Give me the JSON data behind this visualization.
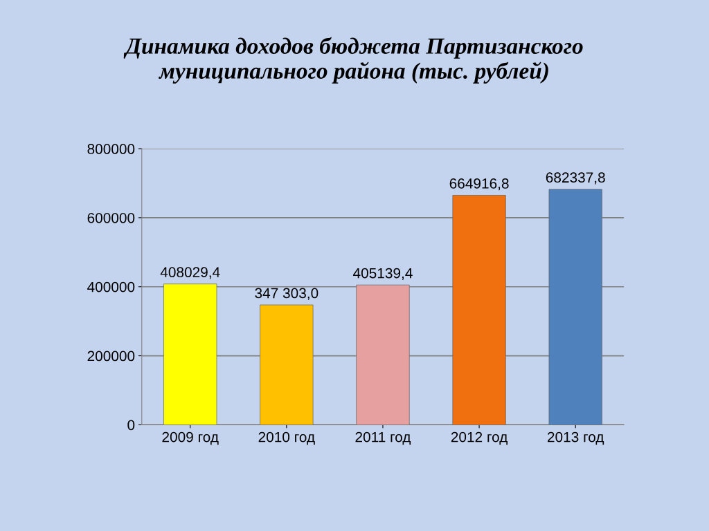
{
  "chart_data": {
    "type": "bar",
    "title": "Динамика доходов бюджета Партизанского\nмуниципального района (тыс. рублей)",
    "categories": [
      "2009 год",
      "2010 год",
      "2011 год",
      "2012 год",
      "2013 год"
    ],
    "values": [
      408029.4,
      347303.0,
      405139.4,
      664916.8,
      682337.8
    ],
    "colors": [
      "#ffff00",
      "#ffc000",
      "#e6a0a0",
      "#f07010",
      "#4f81bd"
    ],
    "value_labels": [
      "408029,4",
      "347 303,0",
      "405139,4",
      "664916,8",
      "682337,8"
    ],
    "ylim": [
      0,
      800000
    ],
    "yticks": [
      0,
      200000,
      400000,
      600000,
      800000
    ],
    "grid": "y"
  }
}
